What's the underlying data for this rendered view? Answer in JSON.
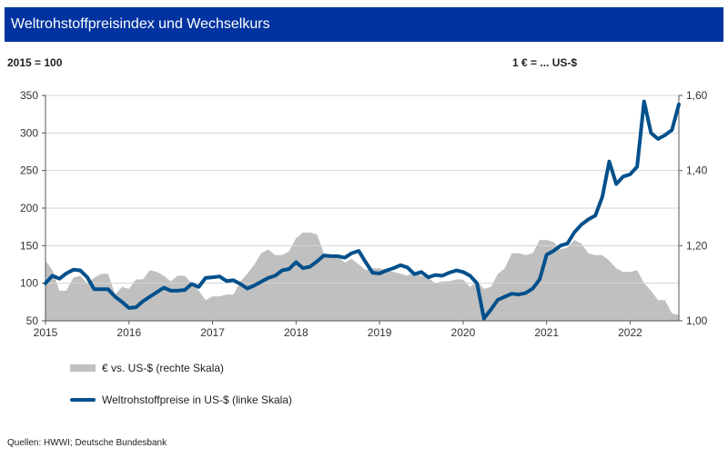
{
  "header": {
    "title": "Weltrohstoffpreisindex und Wechselkurs"
  },
  "chart_data": {
    "type": "line+area",
    "title": "Weltrohstoffpreisindex und Wechselkurs",
    "left_axis_unit": "2015 = 100",
    "right_axis_unit": "1 € = ... US-$",
    "left_ylim": [
      50,
      350
    ],
    "left_ticks": [
      "50",
      "100",
      "150",
      "200",
      "250",
      "300",
      "350"
    ],
    "right_ylim": [
      1.0,
      1.6
    ],
    "right_ticks": [
      "1,00",
      "1,20",
      "1,40",
      "1,60"
    ],
    "x_ticks": [
      "2015",
      "2016",
      "2017",
      "2018",
      "2019",
      "2020",
      "2021",
      "2022"
    ],
    "x_range": [
      "2015-01",
      "2022-08"
    ],
    "frequency": "monthly",
    "grid": true,
    "legend_placement": "bottom-left",
    "series": [
      {
        "name": "€ vs. US-$ (rechte Skala)",
        "axis": "right",
        "kind": "area",
        "color": "#c0c0c0",
        "values": [
          1.16,
          1.135,
          1.08,
          1.08,
          1.115,
          1.12,
          1.1,
          1.115,
          1.125,
          1.125,
          1.07,
          1.09,
          1.085,
          1.11,
          1.11,
          1.135,
          1.13,
          1.12,
          1.105,
          1.12,
          1.12,
          1.1,
          1.08,
          1.055,
          1.065,
          1.065,
          1.07,
          1.07,
          1.105,
          1.125,
          1.15,
          1.18,
          1.19,
          1.175,
          1.175,
          1.185,
          1.22,
          1.235,
          1.235,
          1.23,
          1.18,
          1.17,
          1.17,
          1.155,
          1.165,
          1.15,
          1.135,
          1.14,
          1.14,
          1.135,
          1.13,
          1.125,
          1.12,
          1.13,
          1.12,
          1.115,
          1.1,
          1.105,
          1.105,
          1.11,
          1.11,
          1.09,
          1.105,
          1.085,
          1.09,
          1.125,
          1.14,
          1.18,
          1.18,
          1.175,
          1.18,
          1.215,
          1.215,
          1.21,
          1.19,
          1.195,
          1.215,
          1.205,
          1.18,
          1.175,
          1.175,
          1.16,
          1.14,
          1.13,
          1.13,
          1.135,
          1.1,
          1.08,
          1.055,
          1.055,
          1.02,
          1.015
        ]
      },
      {
        "name": "Weltrohstoffpreise in US-$ (linke Skala)",
        "axis": "left",
        "kind": "line",
        "color": "#00508c",
        "values": [
          100,
          110,
          106,
          113,
          118,
          117,
          108,
          92,
          92,
          92,
          82,
          75,
          67,
          68,
          76,
          82,
          88,
          94,
          90,
          90,
          91,
          99,
          95,
          107,
          108,
          109,
          103,
          104,
          99,
          93,
          97,
          102,
          107,
          110,
          117,
          119,
          128,
          120,
          122,
          129,
          137,
          136,
          136,
          134,
          140,
          143,
          128,
          114,
          113,
          117,
          120,
          124,
          121,
          112,
          115,
          108,
          111,
          110,
          114,
          117,
          115,
          110,
          100,
          53,
          65,
          78,
          82,
          86,
          85,
          87,
          93,
          105,
          138,
          143,
          150,
          153,
          168,
          178,
          185,
          190,
          215,
          262,
          232,
          242,
          245,
          255,
          342,
          300,
          292,
          297,
          304,
          338
        ]
      }
    ]
  },
  "legend": {
    "items": [
      "€ vs. US-$ (rechte Skala)",
      "Weltrohstoffpreise in US-$ (linke Skala)"
    ]
  },
  "footer": {
    "source": "Quellen: HWWI; Deutsche Bundesbank"
  }
}
